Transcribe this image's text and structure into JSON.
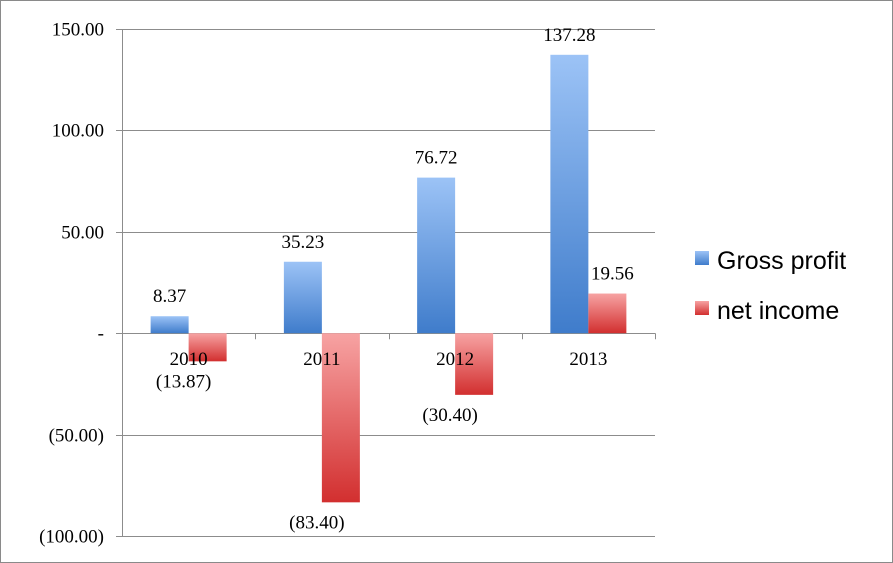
{
  "chart_data": {
    "type": "bar",
    "categories": [
      "2010",
      "2011",
      "2012",
      "2013"
    ],
    "series": [
      {
        "name": "Gross profit",
        "values": [
          8.37,
          35.23,
          76.72,
          137.28
        ],
        "labels": [
          "8.37",
          "35.23",
          "76.72",
          "137.28"
        ],
        "color": "#4a86cf"
      },
      {
        "name": "net income",
        "values": [
          -13.87,
          -83.4,
          -30.4,
          19.56
        ],
        "labels": [
          "(13.87)",
          "(83.40)",
          "(30.40)",
          "19.56"
        ],
        "color": "#d93b3b"
      }
    ],
    "ylim": [
      -100,
      150
    ],
    "yticks": [
      150,
      100,
      50,
      0,
      -50,
      -100
    ],
    "ytick_labels": [
      "150.00",
      "100.00",
      "50.00",
      "-",
      "(50.00)",
      "(100.00)"
    ],
    "grid": true,
    "legend": "right",
    "title": "",
    "xlabel": "",
    "ylabel": ""
  }
}
